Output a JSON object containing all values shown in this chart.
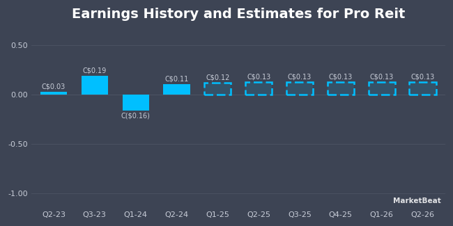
{
  "title": "Earnings History and Estimates for Pro Reit",
  "categories": [
    "Q2-23",
    "Q3-23",
    "Q1-24",
    "Q2-24",
    "Q1-25",
    "Q2-25",
    "Q3-25",
    "Q4-25",
    "Q1-26",
    "Q2-26"
  ],
  "values": [
    0.03,
    0.19,
    -0.16,
    0.11,
    0.12,
    0.13,
    0.13,
    0.13,
    0.13,
    0.13
  ],
  "labels": [
    "C$0.03",
    "C$0.19",
    "C($0.16)",
    "C$0.11",
    "C$0.12",
    "C$0.13",
    "C$0.13",
    "C$0.13",
    "C$0.13",
    "C$0.13"
  ],
  "is_estimate": [
    false,
    false,
    false,
    false,
    true,
    true,
    true,
    true,
    true,
    true
  ],
  "bar_color": "#00BFFF",
  "background_color": "#3d4454",
  "text_color": "#c8cdd8",
  "grid_color": "#4d5464",
  "ylim": [
    -1.15,
    0.68
  ],
  "yticks": [
    -1.0,
    -0.5,
    0.0,
    0.5
  ],
  "ytick_labels": [
    "-1.00",
    "-0.50",
    "0.00",
    "0.50"
  ],
  "title_fontsize": 14,
  "label_fontsize": 7,
  "tick_fontsize": 8,
  "watermark": "MarketBeat",
  "bar_width": 0.65
}
